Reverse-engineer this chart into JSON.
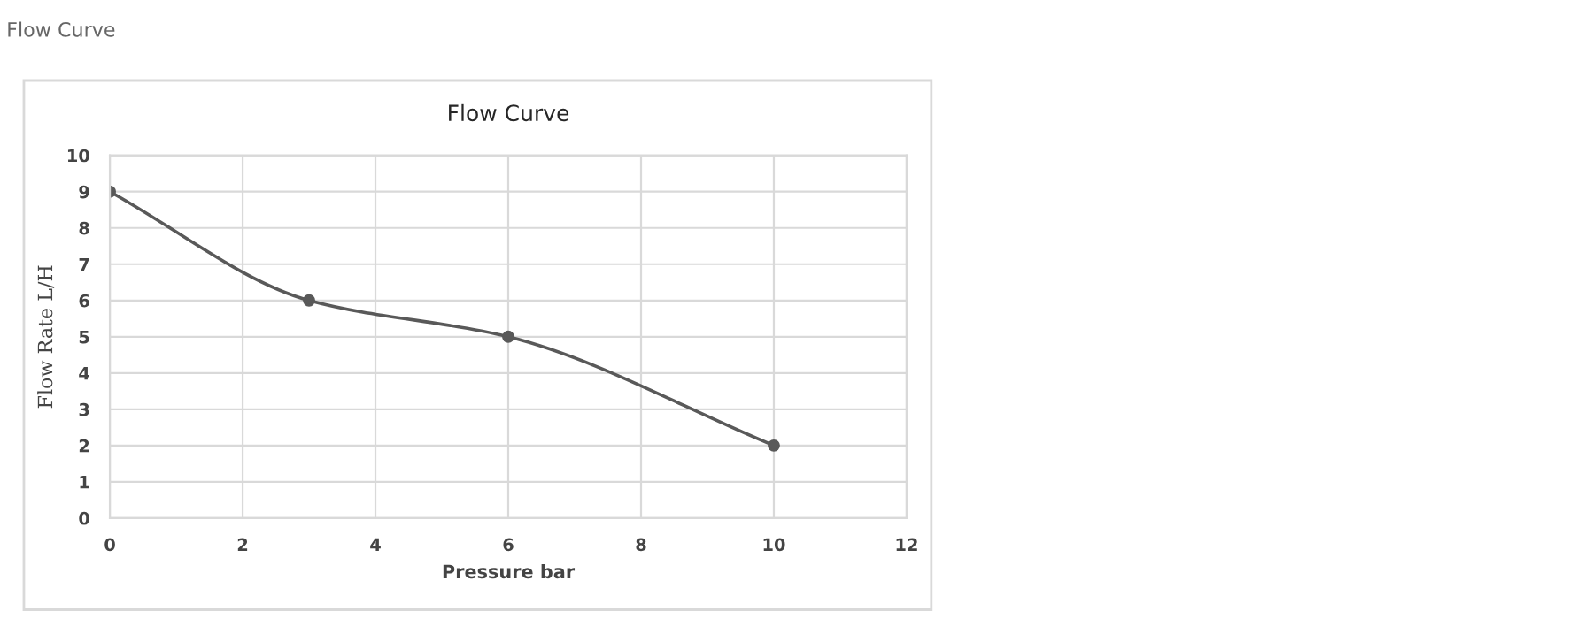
{
  "chart_data": {
    "type": "line",
    "title": "Flow Curve",
    "subtitle": "Flow Curve",
    "x": [
      0,
      3,
      6,
      10
    ],
    "series": [
      {
        "color": "#595959",
        "values": [
          9,
          6,
          5,
          2
        ]
      }
    ],
    "xlabel": "Pressure bar",
    "ylabel": "Flow Rate L/H",
    "xlim": [
      0,
      12
    ],
    "xticks": [
      0,
      2,
      4,
      6,
      8,
      10,
      12
    ],
    "ylim": [
      0,
      10
    ],
    "yticks": [
      0,
      1,
      2,
      3,
      4,
      5,
      6,
      7,
      8,
      9,
      10
    ],
    "grid": true,
    "marker": "circle",
    "line_style": "solid",
    "legend": false
  }
}
